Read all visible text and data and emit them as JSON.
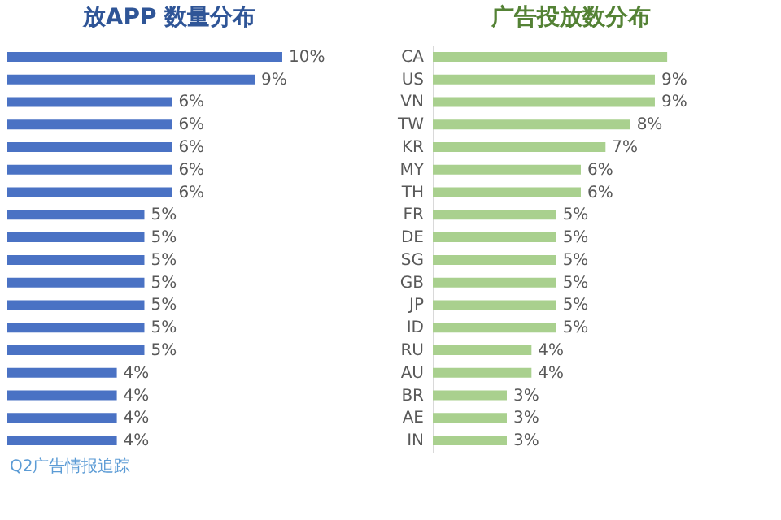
{
  "chart_data": [
    {
      "type": "bar",
      "title": "放APP 数量分布",
      "orientation": "horizontal",
      "tick_labels": false,
      "categories": [
        null,
        null,
        null,
        null,
        null,
        null,
        null,
        null,
        null,
        null,
        null,
        null,
        null,
        null,
        null,
        null,
        null,
        null
      ],
      "values": [
        10,
        9,
        6,
        6,
        6,
        6,
        6,
        5,
        5,
        5,
        5,
        5,
        5,
        5,
        4,
        4,
        4,
        4
      ],
      "value_labels": [
        "10%",
        "9%",
        "6%",
        "6%",
        "6%",
        "6%",
        "6%",
        "5%",
        "5%",
        "5%",
        "5%",
        "5%",
        "5%",
        "5%",
        "4%",
        "4%",
        "4%",
        "4%"
      ],
      "color": "#4a72c4",
      "annotations": [
        "Q2广告情报追踪"
      ]
    },
    {
      "type": "bar",
      "title": "广告投放数分布",
      "orientation": "horizontal",
      "tick_labels": "y",
      "categories": [
        "CA",
        "US",
        "VN",
        "TW",
        "KR",
        "MY",
        "TH",
        "FR",
        "DE",
        "SG",
        "GB",
        "JP",
        "ID",
        "RU",
        "AU",
        "BR",
        "AE",
        "IN"
      ],
      "values": [
        9.5,
        9,
        9,
        8,
        7,
        6,
        6,
        5,
        5,
        5,
        5,
        5,
        5,
        4,
        4,
        3,
        3,
        3
      ],
      "value_labels": [
        null,
        "9%",
        "9%",
        "8%",
        "7%",
        "6%",
        "6%",
        "5%",
        "5%",
        "5%",
        "5%",
        "5%",
        "5%",
        "4%",
        "4%",
        "3%",
        "3%",
        "3%"
      ],
      "color": "#a9d08e"
    }
  ]
}
